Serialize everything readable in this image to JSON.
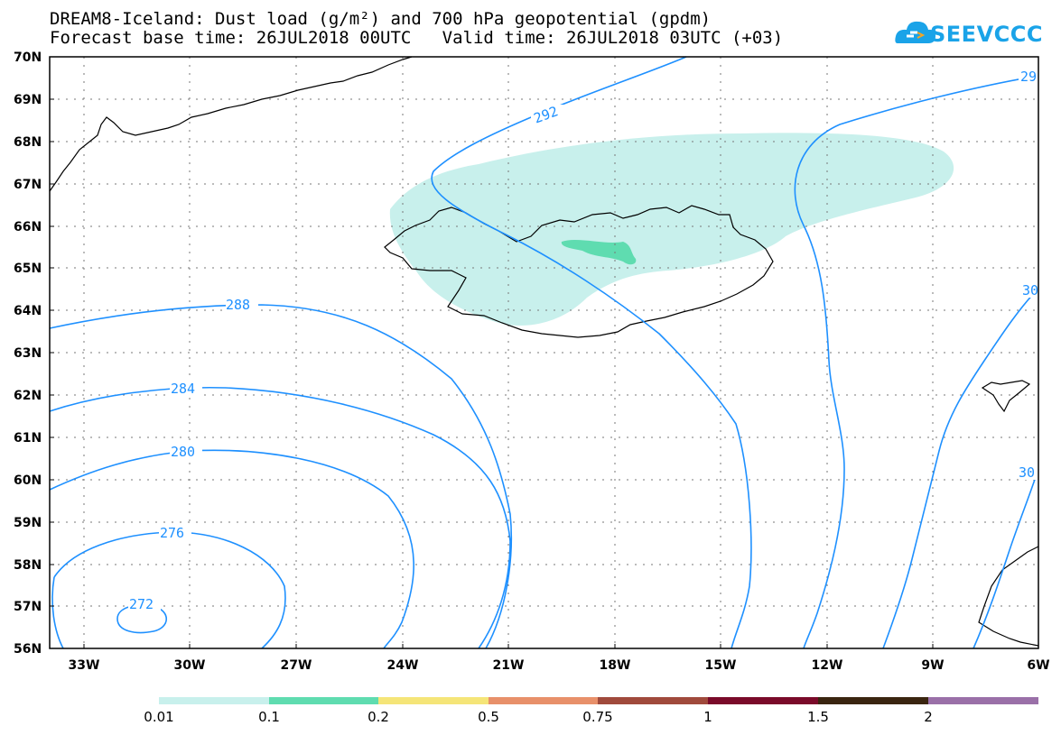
{
  "title": {
    "line1": "DREAM8-Iceland: Dust load (g/m²) and 700 hPa geopotential (gpdm)",
    "line2": "Forecast base time: 26JUL2018 00UTC   Valid time: 26JUL2018 03UTC (+03)"
  },
  "logo": {
    "text": "SEEVCCC",
    "icon": "cloud-logo-icon",
    "color": "#1aa3e8"
  },
  "map": {
    "lat_labels": [
      "70N",
      "69N",
      "68N",
      "67N",
      "66N",
      "65N",
      "64N",
      "63N",
      "62N",
      "61N",
      "60N",
      "59N",
      "58N",
      "57N",
      "56N"
    ],
    "lon_labels": [
      "33W",
      "30W",
      "27W",
      "24W",
      "21W",
      "18W",
      "15W",
      "12W",
      "9W",
      "6W"
    ],
    "contour_color": "#1e90ff",
    "contour_labels": [
      "292",
      "29",
      "288",
      "30",
      "284",
      "280",
      "30",
      "276",
      "272"
    ],
    "dust_colors": {
      "low": "#c8f0ec",
      "mid": "#5fdcb0"
    }
  },
  "colorbar": {
    "labels": [
      "0.01",
      "0.1",
      "0.2",
      "0.5",
      "0.75",
      "1",
      "1.5",
      "2"
    ],
    "colors": [
      "#c8f0ec",
      "#5fdcb0",
      "#f5e578",
      "#e8906a",
      "#a04a3c",
      "#7a0a2a",
      "#3a2510",
      "#9a70a8"
    ]
  }
}
